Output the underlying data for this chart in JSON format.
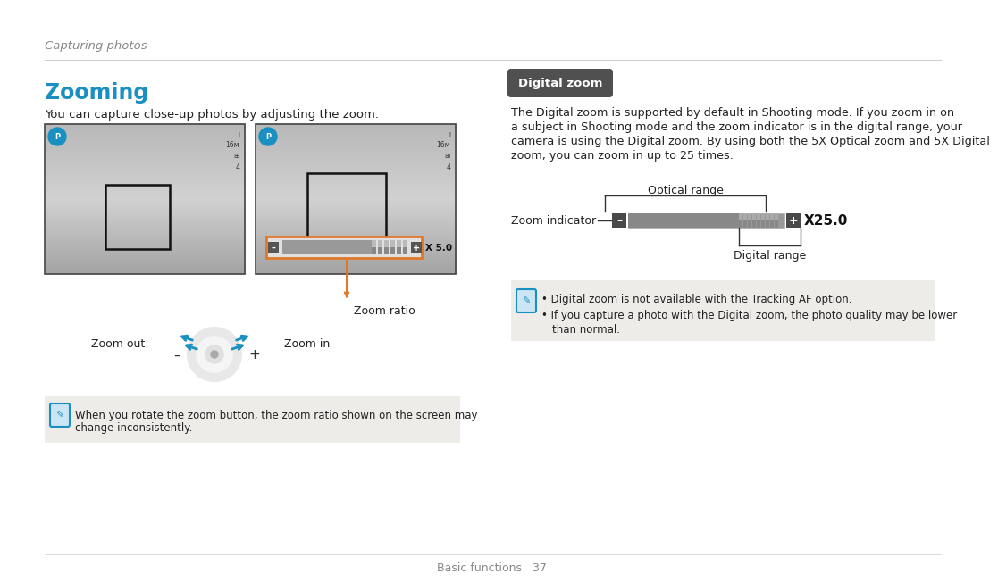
{
  "bg_color": "#ffffff",
  "page_title": "Capturing photos",
  "section_title": "Zooming",
  "section_subtitle": "You can capture close-up photos by adjusting the zoom.",
  "digital_zoom_label": "Digital zoom",
  "digital_zoom_text_1": "The Digital zoom is supported by default in Shooting mode. If you zoom in on",
  "digital_zoom_text_2": "a subject in Shooting mode and the zoom indicator is in the digital range, your",
  "digital_zoom_text_3": "camera is using the Digital zoom. By using both the 5X Optical zoom and 5X Digital",
  "digital_zoom_text_4": "zoom, you can zoom in up to 25 times.",
  "optical_range_label": "Optical range",
  "digital_range_label": "Digital range",
  "zoom_indicator_label": "Zoom indicator",
  "zoom_ratio_label": "Zoom ratio",
  "zoom_out_label": "Zoom out",
  "zoom_in_label": "Zoom in",
  "note_left_1": "When you rotate the zoom button, the zoom ratio shown on the screen may",
  "note_left_2": "change inconsistently.",
  "note_right_1": "Digital zoom is not available with the Tracking AF option.",
  "note_right_2": "If you capture a photo with the Digital zoom, the photo quality may be lower",
  "note_right_3": "than normal.",
  "footer_text": "Basic functions   37",
  "blue_color": "#1a8fc1",
  "dark_text": "#222222",
  "gray_text": "#888888",
  "light_gray_text": "#999999",
  "note_bg": "#eeece8",
  "line_color": "#cccccc",
  "orange_color": "#e07828",
  "tag_bg": "#505050",
  "tag_text": "#ffffff",
  "cam_border": "#444444"
}
